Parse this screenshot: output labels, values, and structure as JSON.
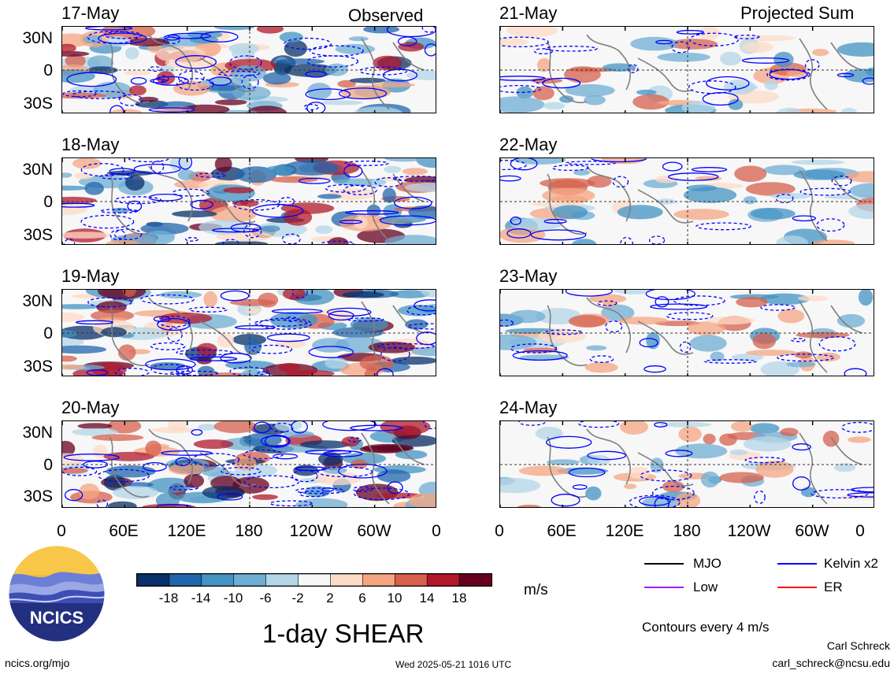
{
  "panels": {
    "left_title": "Observed",
    "right_title": "Projected Sum",
    "left_dates": [
      "17-May",
      "18-May",
      "19-May",
      "20-May"
    ],
    "right_dates": [
      "21-May",
      "22-May",
      "23-May",
      "24-May"
    ],
    "lat_labels": [
      "30N",
      "0",
      "30S"
    ],
    "lon_labels": [
      "0",
      "60E",
      "120E",
      "180",
      "120W",
      "60W",
      "0"
    ]
  },
  "colorbar": {
    "colors": [
      "#08306b",
      "#2166ac",
      "#4393c3",
      "#6faed4",
      "#b4d6e8",
      "#f7f7f7",
      "#fddbc7",
      "#f4a582",
      "#d6604d",
      "#b2182b",
      "#67001f"
    ],
    "tick_labels": [
      "-18",
      "-14",
      "-10",
      "-6",
      "-2",
      "2",
      "6",
      "10",
      "14",
      "18"
    ],
    "units": "m/s"
  },
  "legend": {
    "items": [
      {
        "label": "MJO",
        "color": "#000000"
      },
      {
        "label": "Kelvin x2",
        "color": "#0000ff"
      },
      {
        "label": "Low",
        "color": "#a020f0"
      },
      {
        "label": "ER",
        "color": "#ff0000"
      }
    ],
    "contours_note": "Contours every 4 m/s"
  },
  "logo": {
    "text": "NCICS"
  },
  "footer": {
    "main_title": "1-day SHEAR",
    "url": "ncics.org/mjo",
    "timestamp": "Wed 2025-05-21 1016 UTC",
    "author": "Carl Schreck",
    "email": "carl_schreck@ncsu.edu"
  }
}
